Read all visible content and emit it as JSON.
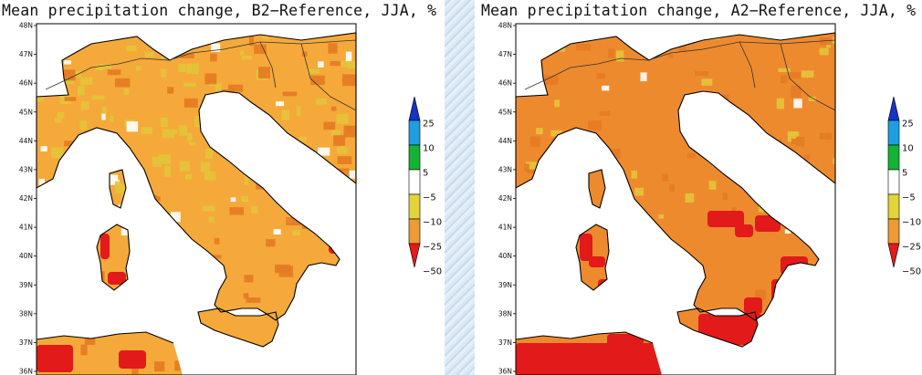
{
  "panels": [
    {
      "title": "Mean precipitation change, B2−Reference, JJA, %",
      "scenario": "B2",
      "dominant_fill": "#f5a93a",
      "red_patches": "few"
    },
    {
      "title": "Mean precipitation change, A2−Reference, JJA, %",
      "scenario": "A2",
      "dominant_fill": "#ee8a2e",
      "red_patches": "many"
    }
  ],
  "latitude_labels": [
    "48N",
    "47N",
    "46N",
    "45N",
    "44N",
    "43N",
    "42N",
    "41N",
    "40N",
    "39N",
    "38N",
    "37N",
    "36N"
  ],
  "colorbar": {
    "labels": [
      "25",
      "10",
      "5",
      "−5",
      "−10",
      "−25",
      "−50"
    ],
    "colors": [
      "#1433c8",
      "#1f9fe0",
      "#13b334",
      "#ffffff",
      "#e3d43a",
      "#ee9a35",
      "#e21a1a"
    ]
  },
  "colors": {
    "sea": "#ffffff",
    "coast": "#000000",
    "border": "#333333"
  }
}
